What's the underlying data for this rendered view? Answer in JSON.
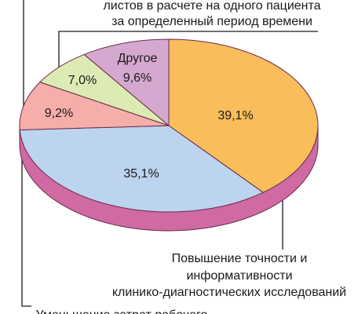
{
  "chart_data": {
    "type": "pie",
    "categories": [
      [
        "Повышение точности и",
        "информативности",
        "клинико-диагностических исследований"
      ],
      [
        "Уменьшение затрат рабочего"
      ],
      null,
      [
        "листов в расчете на одного пациента",
        "за определенный период времени"
      ],
      [
        "Другое"
      ]
    ],
    "values": [
      39.1,
      35.1,
      9.2,
      7.0,
      9.6
    ],
    "value_labels": [
      "39,1%",
      "35,1%",
      "9,2%",
      "7,0%",
      "9,6%"
    ],
    "colors": [
      "#f9bd5c",
      "#bdd4ef",
      "#f6aeaa",
      "#dcebb3",
      "#d5a9cf"
    ]
  }
}
